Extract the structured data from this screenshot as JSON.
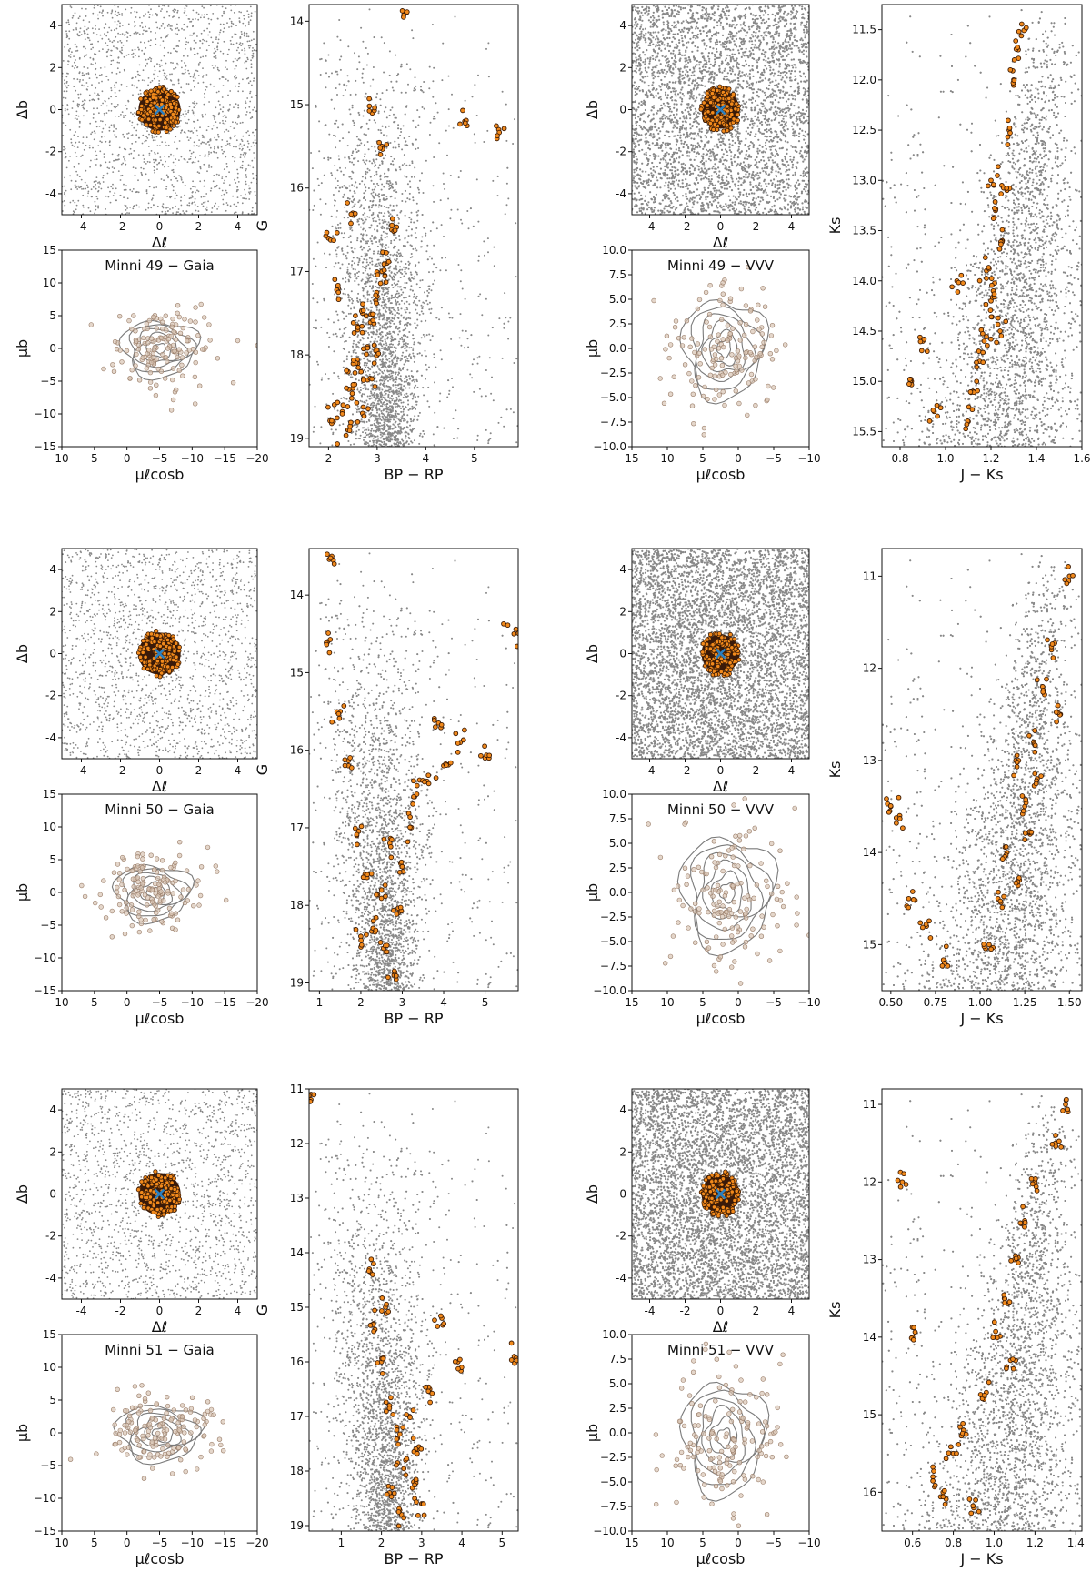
{
  "colors": {
    "field": "#888888",
    "member_fill": "#f28a1c",
    "member_edge": "#3a1a05",
    "center_marker": "#2a7fc0",
    "pm_point": "#d8c4b4",
    "pm_edge": "#9a7e6a",
    "contour": "#7a7a7a",
    "axes": "#111111"
  },
  "chart_data": [
    {
      "id": "minni49_gaia_sky",
      "type": "scatter",
      "title": "",
      "xlabel": "Δℓ",
      "ylabel": "Δb",
      "xlim": [
        -5,
        5
      ],
      "ylim": [
        -5,
        5
      ],
      "xticks": [
        "-4",
        "-2",
        "0",
        "2",
        "4"
      ],
      "yticks": [
        "-4",
        "-2",
        "0",
        "2",
        "4"
      ],
      "field_density": "moderate",
      "members": {
        "center": [
          0,
          0
        ],
        "radius": 1.1
      },
      "center_marker": [
        0,
        0
      ]
    },
    {
      "id": "minni49_gaia_pm",
      "type": "scatter",
      "title": "Minni 49  −  Gaia",
      "xlabel": "μℓcosb",
      "ylabel": "μb",
      "xlim": [
        10,
        -20
      ],
      "ylim": [
        -15,
        15
      ],
      "xticks": [
        "10",
        "5",
        "0",
        "−5",
        "−10",
        "−15",
        "−20"
      ],
      "yticks": [
        "−15",
        "−10",
        "−5",
        "0",
        "5",
        "10",
        "15"
      ],
      "cloud": {
        "center": [
          -5,
          0
        ],
        "spread": [
          4,
          3
        ]
      },
      "contour_levels": 6
    },
    {
      "id": "minni49_gaia_cmd",
      "type": "scatter",
      "title": "",
      "xlabel": "BP − RP",
      "ylabel": "G",
      "xlim": [
        1.6,
        5.9
      ],
      "ylim": [
        19.1,
        13.8
      ],
      "xticks": [
        "2",
        "3",
        "4",
        "5"
      ],
      "yticks": [
        "14",
        "15",
        "16",
        "17",
        "18",
        "19"
      ],
      "members": [
        [
          2.1,
          18.8
        ],
        [
          2.3,
          18.6
        ],
        [
          2.5,
          18.4
        ],
        [
          2.6,
          18.1
        ],
        [
          2.8,
          17.9
        ],
        [
          2.9,
          17.6
        ],
        [
          3.0,
          17.3
        ],
        [
          3.1,
          17.0
        ],
        [
          2.7,
          18.7
        ],
        [
          2.4,
          18.9
        ],
        [
          3.2,
          16.9
        ],
        [
          3.3,
          16.5
        ],
        [
          2.2,
          17.2
        ],
        [
          2.5,
          16.3
        ],
        [
          3.1,
          15.5
        ],
        [
          4.8,
          15.2
        ],
        [
          5.5,
          15.3
        ],
        [
          2.9,
          15.1
        ],
        [
          3.6,
          13.9
        ],
        [
          2.0,
          16.6
        ],
        [
          2.6,
          17.7
        ],
        [
          2.8,
          18.3
        ],
        [
          3.0,
          18.0
        ],
        [
          2.4,
          18.2
        ],
        [
          2.7,
          17.5
        ]
      ]
    },
    {
      "id": "minni49_vvv_sky",
      "type": "scatter",
      "title": "",
      "xlabel": "Δℓ",
      "ylabel": "Δb",
      "xlim": [
        -5,
        5
      ],
      "ylim": [
        -5,
        5
      ],
      "xticks": [
        "-4",
        "-2",
        "0",
        "2",
        "4"
      ],
      "yticks": [
        "-4",
        "-2",
        "0",
        "2",
        "4"
      ],
      "field_density": "dense",
      "members": {
        "center": [
          0,
          0
        ],
        "radius": 1.1
      },
      "center_marker": [
        0,
        0
      ]
    },
    {
      "id": "minni49_vvv_pm",
      "type": "scatter",
      "title": "Minni 49  −  VVV",
      "xlabel": "μℓcosb",
      "ylabel": "μb",
      "xlim": [
        15,
        -10
      ],
      "ylim": [
        -10,
        10
      ],
      "xticks": [
        "15",
        "10",
        "5",
        "0",
        "−5",
        "−10"
      ],
      "yticks": [
        "−10.0",
        "−7.5",
        "−5.0",
        "−2.5",
        "0.0",
        "2.5",
        "5.0",
        "7.5",
        "10.0"
      ],
      "cloud": {
        "center": [
          2,
          0
        ],
        "spread": [
          4,
          3.5
        ]
      },
      "contour_levels": 6
    },
    {
      "id": "minni49_vvv_cmd",
      "type": "scatter",
      "title": "",
      "xlabel": "J − Ks",
      "ylabel": "Ks",
      "xlim": [
        0.72,
        1.6
      ],
      "ylim": [
        15.65,
        11.25
      ],
      "xticks": [
        "0.8",
        "1.0",
        "1.2",
        "1.4",
        "1.6"
      ],
      "yticks": [
        "11.5",
        "12.0",
        "12.5",
        "13.0",
        "13.5",
        "14.0",
        "14.5",
        "15.0",
        "15.5"
      ],
      "members": [
        [
          1.2,
          13.0
        ],
        [
          1.22,
          13.3
        ],
        [
          1.25,
          13.6
        ],
        [
          1.18,
          13.9
        ],
        [
          1.2,
          14.2
        ],
        [
          1.24,
          14.5
        ],
        [
          1.15,
          14.8
        ],
        [
          1.12,
          15.1
        ],
        [
          1.28,
          12.5
        ],
        [
          1.3,
          12.0
        ],
        [
          1.32,
          11.7
        ],
        [
          0.85,
          15.0
        ],
        [
          0.9,
          14.6
        ],
        [
          0.95,
          15.3
        ],
        [
          1.05,
          14.0
        ],
        [
          1.1,
          15.4
        ],
        [
          1.27,
          13.1
        ],
        [
          1.21,
          14.1
        ],
        [
          1.17,
          14.6
        ],
        [
          1.35,
          11.5
        ]
      ]
    },
    {
      "id": "minni50_gaia_sky",
      "type": "scatter",
      "title": "",
      "xlabel": "Δℓ",
      "ylabel": "Δb",
      "xlim": [
        -5,
        5
      ],
      "ylim": [
        -5,
        5
      ],
      "xticks": [
        "-4",
        "-2",
        "0",
        "2",
        "4"
      ],
      "yticks": [
        "-4",
        "-2",
        "0",
        "2",
        "4"
      ],
      "field_density": "moderate",
      "members": {
        "center": [
          0,
          0
        ],
        "radius": 1.1
      },
      "center_marker": [
        0,
        0
      ]
    },
    {
      "id": "minni50_gaia_pm",
      "type": "scatter",
      "title": "Minni 50  −  Gaia",
      "xlabel": "μℓcosb",
      "ylabel": "μb",
      "xlim": [
        10,
        -20
      ],
      "ylim": [
        -15,
        15
      ],
      "xticks": [
        "10",
        "5",
        "0",
        "−5",
        "−10",
        "−15",
        "−20"
      ],
      "yticks": [
        "−15",
        "−10",
        "−5",
        "0",
        "5",
        "10",
        "15"
      ],
      "cloud": {
        "center": [
          -4,
          0
        ],
        "spread": [
          4,
          3
        ]
      },
      "contour_levels": 6
    },
    {
      "id": "minni50_gaia_cmd",
      "type": "scatter",
      "title": "",
      "xlabel": "BP − RP",
      "ylabel": "G",
      "xlim": [
        0.75,
        5.8
      ],
      "ylim": [
        19.1,
        13.4
      ],
      "xticks": [
        "1",
        "2",
        "3",
        "4",
        "5"
      ],
      "yticks": [
        "14",
        "15",
        "16",
        "17",
        "18",
        "19"
      ],
      "members": [
        [
          1.2,
          14.6
        ],
        [
          1.5,
          15.5
        ],
        [
          1.7,
          16.2
        ],
        [
          1.9,
          17.1
        ],
        [
          2.1,
          17.6
        ],
        [
          2.3,
          18.2
        ],
        [
          2.6,
          18.6
        ],
        [
          2.8,
          18.9
        ],
        [
          3.0,
          17.5
        ],
        [
          3.2,
          17.0
        ],
        [
          3.6,
          16.4
        ],
        [
          4.0,
          16.2
        ],
        [
          4.4,
          15.9
        ],
        [
          5.0,
          16.1
        ],
        [
          5.7,
          14.5
        ],
        [
          2.5,
          17.8
        ],
        [
          2.0,
          18.4
        ],
        [
          2.9,
          18.1
        ],
        [
          3.3,
          16.6
        ],
        [
          1.3,
          13.5
        ],
        [
          3.8,
          15.7
        ],
        [
          2.7,
          17.2
        ]
      ]
    },
    {
      "id": "minni50_vvv_sky",
      "type": "scatter",
      "title": "",
      "xlabel": "Δℓ",
      "ylabel": "Δb",
      "xlim": [
        -5,
        5
      ],
      "ylim": [
        -5,
        5
      ],
      "xticks": [
        "-4",
        "-2",
        "0",
        "2",
        "4"
      ],
      "yticks": [
        "-4",
        "-2",
        "0",
        "2",
        "4"
      ],
      "field_density": "very dense",
      "members": {
        "center": [
          0,
          0
        ],
        "radius": 1.1
      },
      "center_marker": [
        0,
        0
      ]
    },
    {
      "id": "minni50_vvv_pm",
      "type": "scatter",
      "title": "Minni 50  −  VVV",
      "xlabel": "μℓcosb",
      "ylabel": "μb",
      "xlim": [
        15,
        -10
      ],
      "ylim": [
        -10,
        10
      ],
      "xticks": [
        "15",
        "10",
        "5",
        "0",
        "−5",
        "−10"
      ],
      "yticks": [
        "−10.0",
        "−7.5",
        "−5.0",
        "−2.5",
        "0.0",
        "2.5",
        "5.0",
        "7.5",
        "10.0"
      ],
      "cloud": {
        "center": [
          1.5,
          0
        ],
        "spread": [
          4.5,
          4
        ]
      },
      "contour_levels": 6
    },
    {
      "id": "minni50_vvv_cmd",
      "type": "scatter",
      "title": "",
      "xlabel": "J − Ks",
      "ylabel": "Ks",
      "xlim": [
        0.45,
        1.57
      ],
      "ylim": [
        15.5,
        10.7
      ],
      "xticks": [
        "0.50",
        "0.75",
        "1.00",
        "1.25",
        "1.50"
      ],
      "yticks": [
        "11",
        "12",
        "13",
        "14",
        "15"
      ],
      "members": [
        [
          1.2,
          13.0
        ],
        [
          1.25,
          13.5
        ],
        [
          1.3,
          12.8
        ],
        [
          1.35,
          12.2
        ],
        [
          1.4,
          11.8
        ],
        [
          1.5,
          11.0
        ],
        [
          1.15,
          14.0
        ],
        [
          1.1,
          14.5
        ],
        [
          1.05,
          15.0
        ],
        [
          0.6,
          14.5
        ],
        [
          0.7,
          14.8
        ],
        [
          0.8,
          15.2
        ],
        [
          0.5,
          13.5
        ],
        [
          0.55,
          13.6
        ],
        [
          1.28,
          13.8
        ],
        [
          1.22,
          14.3
        ],
        [
          1.45,
          12.5
        ],
        [
          1.32,
          13.2
        ]
      ]
    },
    {
      "id": "minni51_gaia_sky",
      "type": "scatter",
      "title": "",
      "xlabel": "Δℓ",
      "ylabel": "Δb",
      "xlim": [
        -5,
        5
      ],
      "ylim": [
        -5,
        5
      ],
      "xticks": [
        "-4",
        "-2",
        "0",
        "2",
        "4"
      ],
      "yticks": [
        "-4",
        "-2",
        "0",
        "2",
        "4"
      ],
      "field_density": "moderate",
      "members": {
        "center": [
          0,
          0
        ],
        "radius": 1.1
      },
      "center_marker": [
        0,
        0
      ]
    },
    {
      "id": "minni51_gaia_pm",
      "type": "scatter",
      "title": "Minni 51  −  Gaia",
      "xlabel": "μℓcosb",
      "ylabel": "μb",
      "xlim": [
        10,
        -20
      ],
      "ylim": [
        -15,
        15
      ],
      "xticks": [
        "10",
        "5",
        "0",
        "−5",
        "−10",
        "−15",
        "−20"
      ],
      "yticks": [
        "−15",
        "−10",
        "−5",
        "0",
        "5",
        "10",
        "15"
      ],
      "cloud": {
        "center": [
          -5,
          0
        ],
        "spread": [
          4.5,
          3
        ]
      },
      "contour_levels": 6
    },
    {
      "id": "minni51_gaia_cmd",
      "type": "scatter",
      "title": "",
      "xlabel": "BP − RP",
      "ylabel": "G",
      "xlim": [
        0.2,
        5.4
      ],
      "ylim": [
        19.1,
        11
      ],
      "xticks": [
        "1",
        "2",
        "3",
        "4",
        "5"
      ],
      "yticks": [
        "11",
        "12",
        "13",
        "14",
        "15",
        "16",
        "17",
        "18",
        "19"
      ],
      "members": [
        [
          0.25,
          11.1
        ],
        [
          1.7,
          14.3
        ],
        [
          1.8,
          15.3
        ],
        [
          2.0,
          16.0
        ],
        [
          2.2,
          16.8
        ],
        [
          2.4,
          17.4
        ],
        [
          2.6,
          17.8
        ],
        [
          2.8,
          18.2
        ],
        [
          3.0,
          18.6
        ],
        [
          2.7,
          17.0
        ],
        [
          3.2,
          16.5
        ],
        [
          3.9,
          16.0
        ],
        [
          5.3,
          15.9
        ],
        [
          2.5,
          18.8
        ],
        [
          2.2,
          18.4
        ],
        [
          2.9,
          17.6
        ],
        [
          2.1,
          15.0
        ],
        [
          3.5,
          15.2
        ]
      ]
    },
    {
      "id": "minni51_vvv_sky",
      "type": "scatter",
      "title": "",
      "xlabel": "Δℓ",
      "ylabel": "Δb",
      "xlim": [
        -5,
        5
      ],
      "ylim": [
        -5,
        5
      ],
      "xticks": [
        "-4",
        "-2",
        "0",
        "2",
        "4"
      ],
      "yticks": [
        "-4",
        "-2",
        "0",
        "2",
        "4"
      ],
      "field_density": "very dense",
      "members": {
        "center": [
          0,
          0
        ],
        "radius": 1.1
      },
      "center_marker": [
        0,
        0
      ]
    },
    {
      "id": "minni51_vvv_pm",
      "type": "scatter",
      "title": "Minni 51  −  VVV",
      "xlabel": "μℓcosb",
      "ylabel": "μb",
      "xlim": [
        15,
        -10
      ],
      "ylim": [
        -10,
        10
      ],
      "xticks": [
        "15",
        "10",
        "5",
        "0",
        "−5",
        "−10"
      ],
      "yticks": [
        "−10.0",
        "−7.5",
        "−5.0",
        "−2.5",
        "0.0",
        "2.5",
        "5.0",
        "7.5",
        "10.0"
      ],
      "cloud": {
        "center": [
          2,
          -0.5
        ],
        "spread": [
          4,
          4
        ]
      },
      "contour_levels": 6
    },
    {
      "id": "minni51_vvv_cmd",
      "type": "scatter",
      "title": "",
      "xlabel": "J − Ks",
      "ylabel": "Ks",
      "xlim": [
        0.45,
        1.43
      ],
      "ylim": [
        16.5,
        10.8
      ],
      "xticks": [
        "0.6",
        "0.8",
        "1.0",
        "1.2",
        "1.4"
      ],
      "yticks": [
        "11",
        "12",
        "13",
        "14",
        "15",
        "16"
      ],
      "members": [
        [
          1.0,
          14.0
        ],
        [
          1.05,
          13.5
        ],
        [
          1.1,
          13.0
        ],
        [
          1.15,
          12.5
        ],
        [
          1.2,
          12.0
        ],
        [
          1.3,
          11.5
        ],
        [
          1.35,
          11.0
        ],
        [
          0.8,
          15.5
        ],
        [
          0.75,
          16.0
        ],
        [
          0.7,
          15.8
        ],
        [
          0.9,
          16.2
        ],
        [
          0.6,
          14.0
        ],
        [
          0.55,
          12.0
        ],
        [
          0.95,
          14.8
        ],
        [
          1.08,
          14.3
        ],
        [
          0.85,
          15.2
        ]
      ]
    }
  ]
}
